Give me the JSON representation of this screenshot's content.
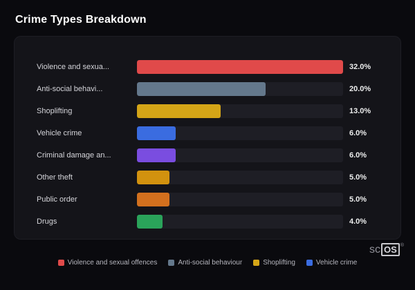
{
  "title": "Crime Types Breakdown",
  "chart_data": {
    "type": "bar",
    "orientation": "horizontal",
    "title": "Crime Types Breakdown",
    "max_value": 32.0,
    "grid": false,
    "legend_position": "bottom",
    "categories": [
      "Violence and sexual offences",
      "Anti-social behaviour",
      "Shoplifting",
      "Vehicle crime",
      "Criminal damage and arson",
      "Other theft",
      "Public order",
      "Drugs"
    ],
    "category_labels_displayed": [
      "Violence and sexua...",
      "Anti-social behavi...",
      "Shoplifting",
      "Vehicle crime",
      "Criminal damage an...",
      "Other theft",
      "Public order",
      "Drugs"
    ],
    "values": [
      32.0,
      20.0,
      13.0,
      6.0,
      6.0,
      5.0,
      5.0,
      4.0
    ],
    "value_labels": [
      "32.0%",
      "20.0%",
      "13.0%",
      "6.0%",
      "6.0%",
      "5.0%",
      "5.0%",
      "4.0%"
    ],
    "colors": [
      "#e04a4a",
      "#64788c",
      "#d4a517",
      "#3a6ce0",
      "#7a4de0",
      "#d2920f",
      "#d2701e",
      "#2aa35a"
    ],
    "legend": [
      {
        "label": "Violence and sexual offences",
        "color": "#e04a4a"
      },
      {
        "label": "Anti-social behaviour",
        "color": "#64788c"
      },
      {
        "label": "Shoplifting",
        "color": "#d4a517"
      },
      {
        "label": "Vehicle crime",
        "color": "#3a6ce0"
      }
    ]
  },
  "logo": {
    "sc": "sc",
    "os": "OS",
    "registered": "®"
  }
}
